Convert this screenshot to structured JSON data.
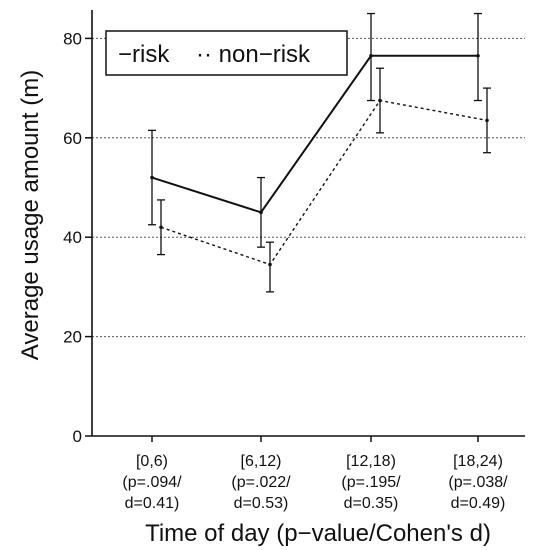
{
  "chart_data": {
    "type": "line",
    "categories": [
      [
        "[0,6)",
        "(p=.094/",
        "d=0.41)"
      ],
      [
        "[6,12)",
        "(p=.022/",
        "d=0.53)"
      ],
      [
        "[12,18)",
        "(p=.195/",
        "d=0.35)"
      ],
      [
        "[18,24)",
        "(p=.038/",
        "d=0.49)"
      ]
    ],
    "series": [
      {
        "name": "risk",
        "style": "solid",
        "values": [
          52,
          45,
          76.5,
          76.5
        ],
        "error_low": [
          42.5,
          38,
          67.5,
          67.5
        ],
        "error_high": [
          61.5,
          52,
          85,
          85
        ]
      },
      {
        "name": "non-risk",
        "style": "dotted",
        "values": [
          42,
          34.5,
          67.5,
          63.5
        ],
        "error_low": [
          36.5,
          29,
          61,
          57
        ],
        "error_high": [
          47.5,
          39,
          74,
          70
        ]
      }
    ],
    "xlabel": "Time of day (p−value/Cohen's d)",
    "ylabel": "Average usage amount (m)",
    "yticks": [
      0,
      20,
      40,
      60,
      80
    ],
    "ylim": [
      0,
      86
    ],
    "grid": "horizontal dotted",
    "legend": {
      "position": "top-left",
      "labels": [
        "−risk",
        "·· non−risk"
      ]
    },
    "colors": {
      "risk": "#111111",
      "non_risk": "#111111",
      "grid": "#555555"
    }
  }
}
